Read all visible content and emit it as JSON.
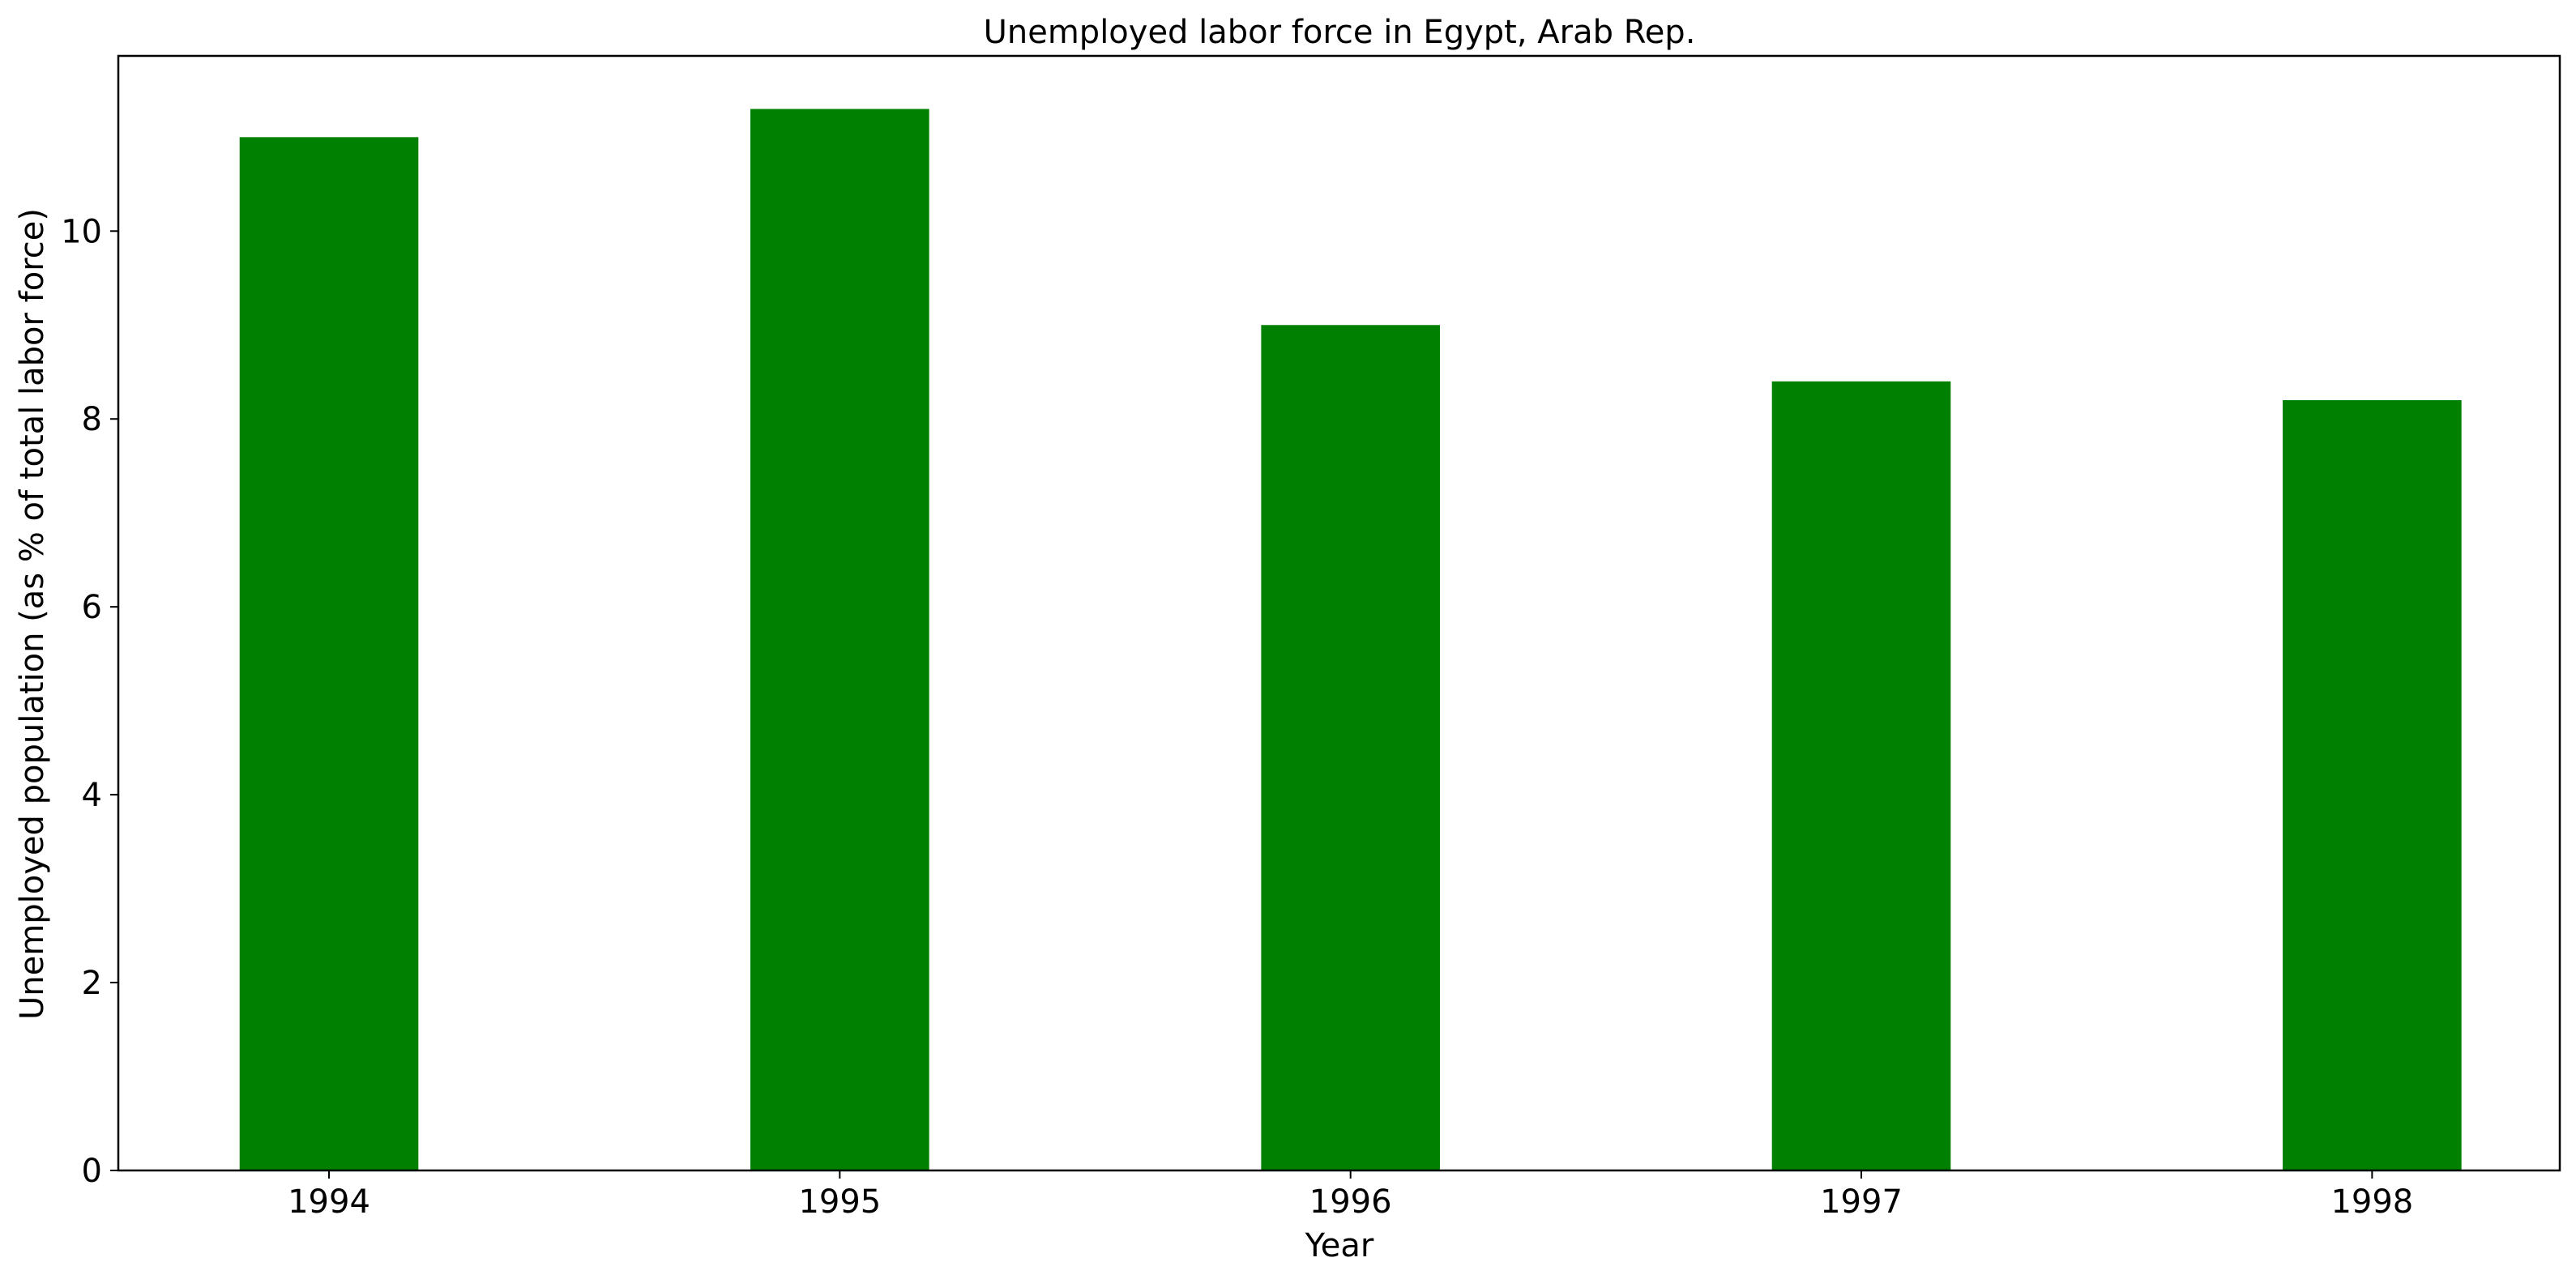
{
  "chart_data": {
    "type": "bar",
    "title": "Unemployed labor force in Egypt, Arab Rep.",
    "xlabel": "Year",
    "ylabel": "Unemployed population (as % of total labor force)",
    "categories": [
      "1994",
      "1995",
      "1996",
      "1997",
      "1998"
    ],
    "values": [
      11.0,
      11.3,
      9.0,
      8.4,
      8.2
    ],
    "ylim": [
      0,
      11.865
    ],
    "yticks": [
      0,
      2,
      4,
      6,
      8,
      10
    ],
    "bar_color": "#008000",
    "grid": false,
    "legend": "none"
  }
}
